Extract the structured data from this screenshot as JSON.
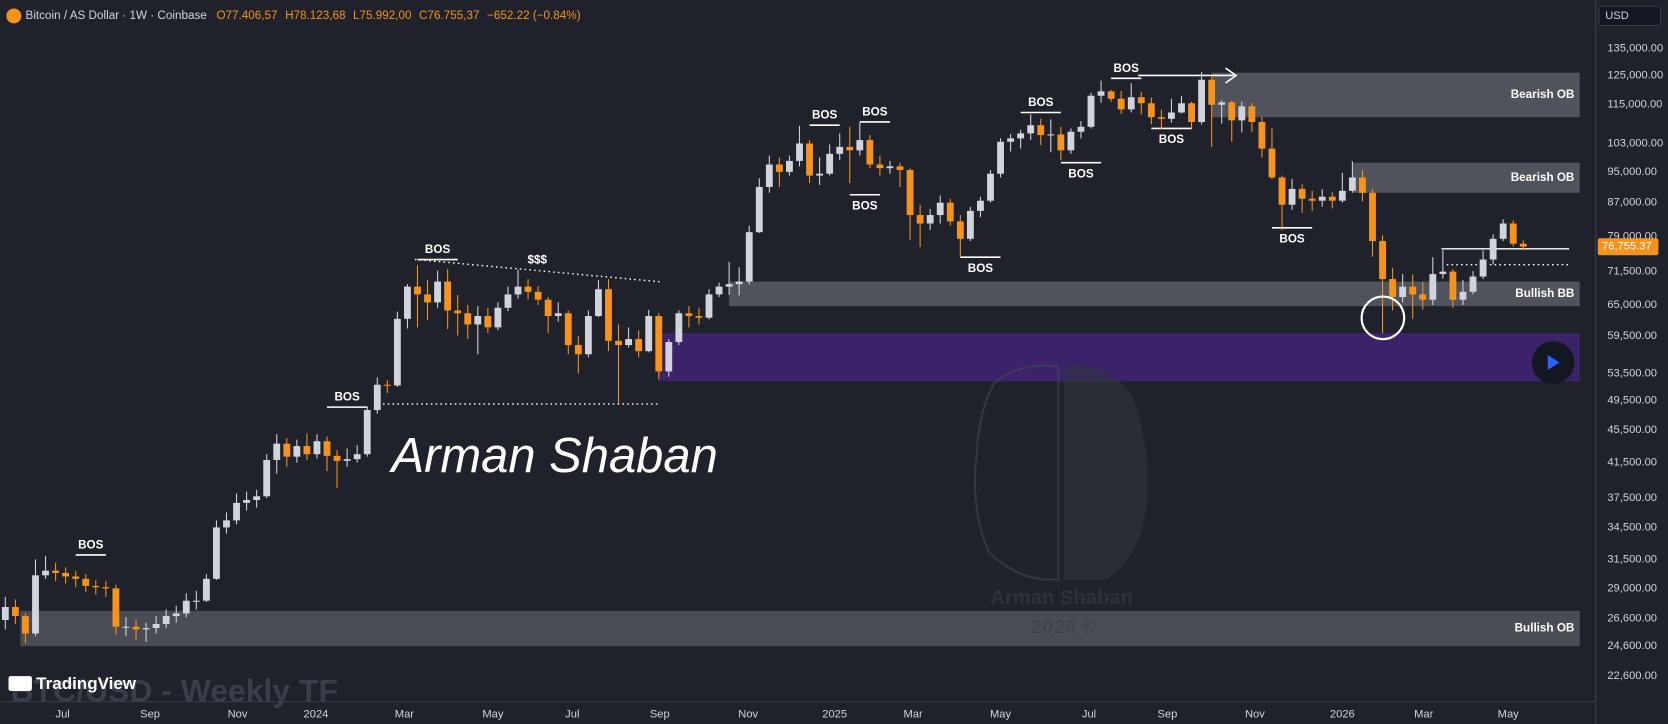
{
  "chart_data": {
    "type": "candlestick",
    "title": "Bitcoin / AS Dollar · 1W · Coinbase",
    "ohlc_labels": [
      "O77.406,57",
      "H78.123,68",
      "L75.992,00",
      "C76.755,37"
    ],
    "change_label": "−652.22 (−0.84%)",
    "currency": "USD",
    "last_price_label": "76,755.37",
    "watermark": "BTC/USD - Weekly TF",
    "brand": "TradingView",
    "signature": "Arman Shaban",
    "logo_texts": [
      "Arman Shaban",
      "2026 ©"
    ],
    "liquidity_label": "$$$",
    "log_scale": true,
    "up_color": "#d1d4dc",
    "down_color": "#f7931a",
    "ylim": [
      21000,
      155000
    ],
    "yticks": [
      {
        "value": 135000,
        "label": "135,000.00"
      },
      {
        "value": 125000,
        "label": "125,000.00"
      },
      {
        "value": 115000,
        "label": "115,000.00"
      },
      {
        "value": 103000,
        "label": "103,000.00"
      },
      {
        "value": 95000,
        "label": "95,000.00"
      },
      {
        "value": 87000,
        "label": "87,000.00"
      },
      {
        "value": 79000,
        "label": "79,000.00"
      },
      {
        "value": 71500,
        "label": "71,500.00"
      },
      {
        "value": 65000,
        "label": "65,000.00"
      },
      {
        "value": 59500,
        "label": "59,500.00"
      },
      {
        "value": 53500,
        "label": "53,500.00"
      },
      {
        "value": 49500,
        "label": "49,500.00"
      },
      {
        "value": 45500,
        "label": "45,500.00"
      },
      {
        "value": 41500,
        "label": "41,500.00"
      },
      {
        "value": 37500,
        "label": "37,500.00"
      },
      {
        "value": 34500,
        "label": "34,500.00"
      },
      {
        "value": 31500,
        "label": "31,500.00"
      },
      {
        "value": 29000,
        "label": "29,000.00"
      },
      {
        "value": 26600,
        "label": "26,600.00"
      },
      {
        "value": 24600,
        "label": "24,600.00"
      },
      {
        "value": 22600,
        "label": "22,600.00"
      }
    ],
    "xlim": [
      -0.53,
      158.2
    ],
    "xticks": [
      {
        "value": 5.7,
        "label": "Jul"
      },
      {
        "value": 14.4,
        "label": "Sep"
      },
      {
        "value": 23.1,
        "label": "Nov"
      },
      {
        "value": 30.9,
        "label": "2024"
      },
      {
        "value": 39.7,
        "label": "Mar"
      },
      {
        "value": 48.5,
        "label": "May"
      },
      {
        "value": 56.4,
        "label": "Jul"
      },
      {
        "value": 65.1,
        "label": "Sep"
      },
      {
        "value": 73.9,
        "label": "Nov"
      },
      {
        "value": 82.5,
        "label": "2025"
      },
      {
        "value": 90.3,
        "label": "Mar"
      },
      {
        "value": 99.0,
        "label": "May"
      },
      {
        "value": 107.8,
        "label": "Jul"
      },
      {
        "value": 115.6,
        "label": "Sep"
      },
      {
        "value": 124.3,
        "label": "Nov"
      },
      {
        "value": 133.0,
        "label": "2026"
      },
      {
        "value": 141.1,
        "label": "Mar"
      },
      {
        "value": 149.5,
        "label": "May"
      }
    ],
    "zones": [
      {
        "label": "Bearish OB",
        "top": 126000,
        "bottom": 111000,
        "start": 120,
        "color": "#565962"
      },
      {
        "label": "Bearish OB",
        "top": 97500,
        "bottom": 89500,
        "start": 134,
        "color": "#565962"
      },
      {
        "label": "Bullish BB",
        "top": 69500,
        "bottom": 64800,
        "start": 72,
        "color": "#565962"
      },
      {
        "top": 60000,
        "bottom": 52300,
        "start": 65,
        "color": "#3d2470"
      },
      {
        "label": "Bullish OB",
        "top": 27200,
        "bottom": 24600,
        "start": 1.5,
        "color": "#4e5159"
      }
    ],
    "bos": [
      {
        "label": "BOS",
        "price": 31900,
        "start": 7,
        "end": 10,
        "position": "above"
      },
      {
        "label": "BOS",
        "price": 48600,
        "start": 32,
        "end": 36,
        "position": "above"
      },
      {
        "label": "BOS",
        "price": 74000,
        "start": 41,
        "end": 45,
        "position": "above"
      },
      {
        "label": "BOS",
        "price": 108500,
        "start": 80,
        "end": 83,
        "position": "above"
      },
      {
        "label": "BOS",
        "price": 109500,
        "start": 85,
        "end": 88,
        "position": "above"
      },
      {
        "label": "BOS",
        "price": 89000,
        "start": 84,
        "end": 87,
        "position": "below"
      },
      {
        "label": "BOS",
        "price": 74500,
        "start": 95,
        "end": 99,
        "position": "below"
      },
      {
        "label": "BOS",
        "price": 112500,
        "start": 101,
        "end": 105,
        "position": "above"
      },
      {
        "label": "BOS",
        "price": 97500,
        "start": 105,
        "end": 109,
        "position": "below"
      },
      {
        "label": "BOS",
        "price": 124000,
        "start": 110,
        "end": 113,
        "position": "above"
      },
      {
        "label": "BOS",
        "price": 107500,
        "start": 114,
        "end": 118,
        "position": "below"
      },
      {
        "label": "BOS",
        "price": 81000,
        "start": 126,
        "end": 130,
        "position": "below"
      }
    ],
    "candles": [
      [
        26500,
        28300,
        25800,
        27500
      ],
      [
        27500,
        28100,
        26200,
        26800
      ],
      [
        26800,
        27000,
        24800,
        25500
      ],
      [
        25500,
        31500,
        25300,
        30100
      ],
      [
        30100,
        31800,
        29800,
        30500
      ],
      [
        30500,
        31200,
        29600,
        30300
      ],
      [
        30300,
        30800,
        29400,
        30000
      ],
      [
        30000,
        30500,
        29100,
        29800
      ],
      [
        29800,
        30200,
        28700,
        29200
      ],
      [
        29200,
        29700,
        28500,
        29100
      ],
      [
        29100,
        29600,
        28300,
        29000
      ],
      [
        29000,
        29300,
        25400,
        26000
      ],
      [
        26000,
        26700,
        25300,
        26000
      ],
      [
        26000,
        26500,
        25000,
        25800
      ],
      [
        25800,
        26300,
        24900,
        25900
      ],
      [
        25900,
        26800,
        25500,
        26200
      ],
      [
        26200,
        27300,
        25900,
        26800
      ],
      [
        26800,
        27600,
        26300,
        27000
      ],
      [
        27000,
        28600,
        26700,
        28000
      ],
      [
        28000,
        28800,
        27300,
        28000
      ],
      [
        28000,
        30200,
        27900,
        29800
      ],
      [
        29800,
        35200,
        29700,
        34500
      ],
      [
        34500,
        36000,
        33900,
        35200
      ],
      [
        35200,
        38000,
        34800,
        37000
      ],
      [
        37000,
        38200,
        36200,
        37300
      ],
      [
        37300,
        38400,
        36500,
        37700
      ],
      [
        37700,
        42500,
        37500,
        41800
      ],
      [
        41800,
        45000,
        40200,
        43800
      ],
      [
        43800,
        44500,
        41000,
        42200
      ],
      [
        42200,
        44300,
        41500,
        43500
      ],
      [
        43500,
        45100,
        41800,
        42500
      ],
      [
        42500,
        45000,
        42000,
        44100
      ],
      [
        44100,
        44700,
        40500,
        42300
      ],
      [
        42300,
        43000,
        38600,
        41700
      ],
      [
        41700,
        43200,
        41000,
        41900
      ],
      [
        41900,
        43600,
        41500,
        42500
      ],
      [
        42500,
        48700,
        42200,
        48200
      ],
      [
        48200,
        52900,
        47700,
        51800
      ],
      [
        51800,
        52500,
        50600,
        51700
      ],
      [
        51700,
        63800,
        51500,
        62500
      ],
      [
        62500,
        69000,
        60800,
        68500
      ],
      [
        68500,
        72800,
        61000,
        67000
      ],
      [
        67000,
        69800,
        62300,
        65500
      ],
      [
        65500,
        71700,
        64500,
        69500
      ],
      [
        69500,
        72000,
        60700,
        64000
      ],
      [
        64000,
        66900,
        59600,
        63500
      ],
      [
        63500,
        65000,
        59000,
        61500
      ],
      [
        61500,
        64800,
        56500,
        63000
      ],
      [
        63000,
        64500,
        60000,
        61000
      ],
      [
        61000,
        65500,
        60500,
        64500
      ],
      [
        64500,
        68500,
        63900,
        67000
      ],
      [
        67000,
        71900,
        66200,
        68500
      ],
      [
        68500,
        70000,
        66000,
        67500
      ],
      [
        67500,
        68600,
        65000,
        66000
      ],
      [
        66000,
        66500,
        60000,
        63000
      ],
      [
        63000,
        65500,
        62000,
        63500
      ],
      [
        63500,
        64000,
        56500,
        58000
      ],
      [
        58000,
        59500,
        53500,
        56500
      ],
      [
        56500,
        64000,
        56000,
        63000
      ],
      [
        63000,
        69800,
        62800,
        68000
      ],
      [
        68000,
        70000,
        57000,
        58700
      ],
      [
        58700,
        61500,
        49100,
        58000
      ],
      [
        58000,
        61000,
        57600,
        59000
      ],
      [
        59000,
        60500,
        56000,
        57000
      ],
      [
        57000,
        64100,
        56800,
        63000
      ],
      [
        63000,
        63500,
        52600,
        53800
      ],
      [
        53800,
        59000,
        53000,
        58500
      ],
      [
        58500,
        64000,
        58000,
        63500
      ],
      [
        63500,
        64800,
        61000,
        63000
      ],
      [
        63000,
        64500,
        61500,
        62700
      ],
      [
        62700,
        68000,
        62400,
        67000
      ],
      [
        67000,
        69300,
        66500,
        68500
      ],
      [
        68500,
        73500,
        66900,
        69000
      ],
      [
        69000,
        72400,
        66800,
        69500
      ],
      [
        69500,
        81500,
        68900,
        80000
      ],
      [
        80000,
        93300,
        79800,
        91000
      ],
      [
        91000,
        99500,
        89500,
        97000
      ],
      [
        97000,
        98900,
        91000,
        95000
      ],
      [
        95000,
        99500,
        94000,
        98000
      ],
      [
        98000,
        108300,
        96500,
        103000
      ],
      [
        103000,
        104000,
        92000,
        94000
      ],
      [
        94000,
        99000,
        91500,
        94500
      ],
      [
        94500,
        102700,
        94000,
        100000
      ],
      [
        100000,
        106000,
        98200,
        102000
      ],
      [
        102000,
        108000,
        92000,
        101000
      ],
      [
        101000,
        109400,
        99500,
        104000
      ],
      [
        104000,
        105500,
        96000,
        97000
      ],
      [
        97000,
        99500,
        94000,
        96000
      ],
      [
        96000,
        98000,
        94500,
        96500
      ],
      [
        96500,
        97500,
        91000,
        95500
      ],
      [
        95500,
        96000,
        78300,
        84000
      ],
      [
        84000,
        86500,
        76700,
        82000
      ],
      [
        82000,
        85500,
        80500,
        84000
      ],
      [
        84000,
        88800,
        82000,
        87000
      ],
      [
        87000,
        88000,
        81500,
        82500
      ],
      [
        82500,
        84000,
        74500,
        78500
      ],
      [
        78500,
        86000,
        78000,
        85000
      ],
      [
        85000,
        88500,
        83500,
        87500
      ],
      [
        87500,
        95500,
        87000,
        94500
      ],
      [
        94500,
        104500,
        93500,
        103500
      ],
      [
        103500,
        105800,
        100700,
        104500
      ],
      [
        104500,
        107100,
        101500,
        106000
      ],
      [
        106000,
        111900,
        104000,
        108500
      ],
      [
        108500,
        110500,
        102500,
        105500
      ],
      [
        105500,
        110300,
        100500,
        105700
      ],
      [
        105700,
        108000,
        98200,
        101000
      ],
      [
        101000,
        107500,
        100000,
        106500
      ],
      [
        106500,
        109800,
        104500,
        108000
      ],
      [
        108000,
        119000,
        107500,
        118000
      ],
      [
        118000,
        123200,
        115700,
        119500
      ],
      [
        119500,
        120000,
        116000,
        117000
      ],
      [
        117000,
        119600,
        112000,
        113500
      ],
      [
        113500,
        122300,
        112500,
        117500
      ],
      [
        117500,
        119200,
        111900,
        115500
      ],
      [
        115500,
        117400,
        108800,
        111000
      ],
      [
        111000,
        113400,
        107300,
        110500
      ],
      [
        110500,
        117000,
        109300,
        112500
      ],
      [
        112500,
        117900,
        112200,
        115500
      ],
      [
        115500,
        116000,
        107200,
        109500
      ],
      [
        109500,
        126200,
        108700,
        123500
      ],
      [
        123500,
        124500,
        102000,
        115000
      ],
      [
        115000,
        116500,
        109000,
        115800
      ],
      [
        115800,
        116400,
        103500,
        110000
      ],
      [
        110000,
        116000,
        106300,
        114500
      ],
      [
        114500,
        115600,
        106500,
        109500
      ],
      [
        109500,
        111200,
        98900,
        101500
      ],
      [
        101500,
        107500,
        93000,
        93500
      ],
      [
        93500,
        94000,
        80500,
        86500
      ],
      [
        86500,
        93100,
        85300,
        90500
      ],
      [
        90500,
        91700,
        84500,
        88000
      ],
      [
        88000,
        90000,
        85000,
        87500
      ],
      [
        87500,
        90400,
        86000,
        88500
      ],
      [
        88500,
        89600,
        85600,
        87500
      ],
      [
        87500,
        94700,
        87000,
        90000
      ],
      [
        90000,
        97900,
        89500,
        93500
      ],
      [
        93500,
        95500,
        87300,
        89500
      ],
      [
        89500,
        90500,
        74600,
        78000
      ],
      [
        78000,
        79300,
        60000,
        70000
      ],
      [
        70000,
        72300,
        64000,
        66500
      ],
      [
        66500,
        71000,
        65500,
        68500
      ],
      [
        68500,
        70900,
        62500,
        67000
      ],
      [
        67000,
        69400,
        64200,
        66000
      ],
      [
        66000,
        74500,
        65000,
        71000
      ],
      [
        71000,
        76000,
        70100,
        71500
      ],
      [
        71500,
        72000,
        64500,
        66000
      ],
      [
        66000,
        69800,
        65000,
        67500
      ],
      [
        67500,
        71600,
        67000,
        70500
      ],
      [
        70500,
        76000,
        70000,
        74000
      ],
      [
        74000,
        79500,
        73000,
        78500
      ],
      [
        78500,
        83000,
        78000,
        82000
      ],
      [
        82000,
        82700,
        76800,
        77407.59
      ],
      [
        77406.57,
        78123.68,
        75992.0,
        76755.37
      ]
    ]
  }
}
